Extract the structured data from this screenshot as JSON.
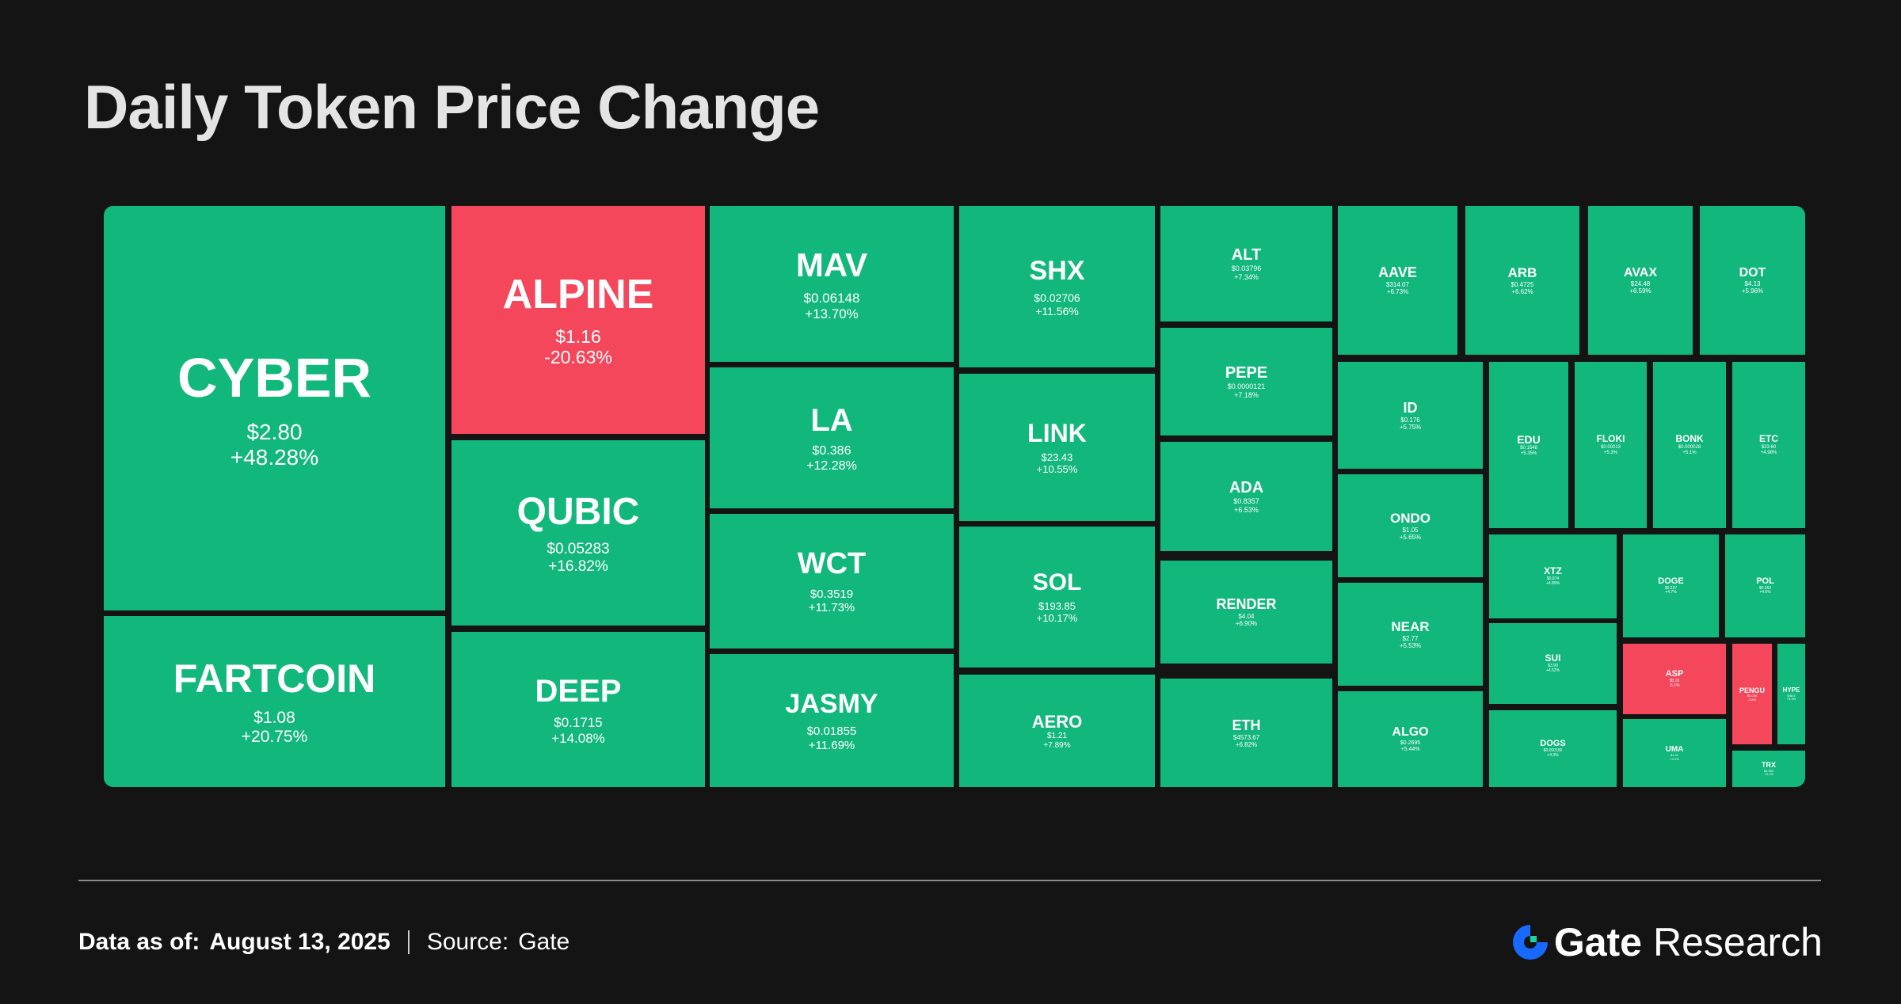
{
  "title": "Daily Token Price Change",
  "footer": {
    "data_as_of_label": "Data as of:",
    "data_as_of_date": "August 13, 2025",
    "source_label": "Source:",
    "source_name": "Gate"
  },
  "brand": {
    "name": "Gate",
    "suffix": "Research"
  },
  "colors": {
    "gain": "#12b77c",
    "loss": "#f4475b",
    "background": "#141414",
    "brand_blue": "#1769ff"
  },
  "chart_data": {
    "type": "treemap",
    "title": "Daily Token Price Change",
    "tokens": [
      {
        "symbol": "CYBER",
        "price": "$2.80",
        "change": "+48.28%"
      },
      {
        "symbol": "FARTCOIN",
        "price": "$1.08",
        "change": "+20.75%"
      },
      {
        "symbol": "ALPINE",
        "price": "$1.16",
        "change": "-20.63%"
      },
      {
        "symbol": "QUBIC",
        "price": "$0.05283",
        "change": "+16.82%"
      },
      {
        "symbol": "DEEP",
        "price": "$0.1715",
        "change": "+14.08%"
      },
      {
        "symbol": "MAV",
        "price": "$0.06148",
        "change": "+13.70%"
      },
      {
        "symbol": "LA",
        "price": "$0.386",
        "change": "+12.28%"
      },
      {
        "symbol": "WCT",
        "price": "$0.3519",
        "change": "+11.73%"
      },
      {
        "symbol": "JASMY",
        "price": "$0.01855",
        "change": "+11.69%"
      },
      {
        "symbol": "SHX",
        "price": "$0.02706",
        "change": "+11.56%"
      },
      {
        "symbol": "LINK",
        "price": "$23.43",
        "change": "+10.55%"
      },
      {
        "symbol": "SOL",
        "price": "$193.85",
        "change": "+10.17%"
      },
      {
        "symbol": "AERO",
        "price": "$1.21",
        "change": "+7.89%"
      },
      {
        "symbol": "ALT",
        "price": "$0.03796",
        "change": "+7.34%"
      },
      {
        "symbol": "PEPE",
        "price": "$0.0000121",
        "change": "+7.18%"
      },
      {
        "symbol": "ADA",
        "price": "$0.8357",
        "change": "+6.53%"
      },
      {
        "symbol": "RENDER",
        "price": "$4.04",
        "change": "+6.90%"
      },
      {
        "symbol": "ETH",
        "price": "$4573.67",
        "change": "+6.82%"
      },
      {
        "symbol": "AAVE",
        "price": "$314.07",
        "change": "+6.73%"
      },
      {
        "symbol": "ARB",
        "price": "$0.4725",
        "change": "+6.62%"
      },
      {
        "symbol": "AVAX",
        "price": "$24.48",
        "change": "+6.59%"
      },
      {
        "symbol": "DOT",
        "price": "$4.13",
        "change": "+5.96%"
      },
      {
        "symbol": "ID",
        "price": "$0.176",
        "change": "+5.75%"
      },
      {
        "symbol": "ONDO",
        "price": "$1.05",
        "change": "+5.65%"
      },
      {
        "symbol": "NEAR",
        "price": "$2.77",
        "change": "+5.53%"
      },
      {
        "symbol": "ALGO",
        "price": "$0.2695",
        "change": "+5.44%"
      },
      {
        "symbol": "EDU",
        "price": "$0.1548",
        "change": "+5.35%"
      },
      {
        "symbol": "FLOKI",
        "price": "$0.00013",
        "change": "+5.3%"
      },
      {
        "symbol": "BONK",
        "price": "$0.000028",
        "change": "+5.1%"
      },
      {
        "symbol": "ETC",
        "price": "$23.60",
        "change": "+4.98%"
      },
      {
        "symbol": "XTZ",
        "price": "$0.974",
        "change": "+4.89%"
      },
      {
        "symbol": "DOGE",
        "price": "$0.237",
        "change": "+4.7%"
      },
      {
        "symbol": "POL",
        "price": "$0.262",
        "change": "+4.6%"
      },
      {
        "symbol": "SUI",
        "price": "$3.90",
        "change": "+4.52%"
      },
      {
        "symbol": "ASP",
        "price": "$0.19",
        "change": "-5.1%"
      },
      {
        "symbol": "PENGU",
        "price": "$0.036",
        "change": "-3.5%"
      },
      {
        "symbol": "HYPE",
        "price": "$46.5",
        "change": "+3.3%"
      },
      {
        "symbol": "DOGS",
        "price": "$0.000156",
        "change": "+4.3%"
      },
      {
        "symbol": "UMA",
        "price": "$1.41",
        "change": "+4.1%"
      },
      {
        "symbol": "TRX",
        "price": "$0.353",
        "change": "+3.1%"
      }
    ]
  }
}
